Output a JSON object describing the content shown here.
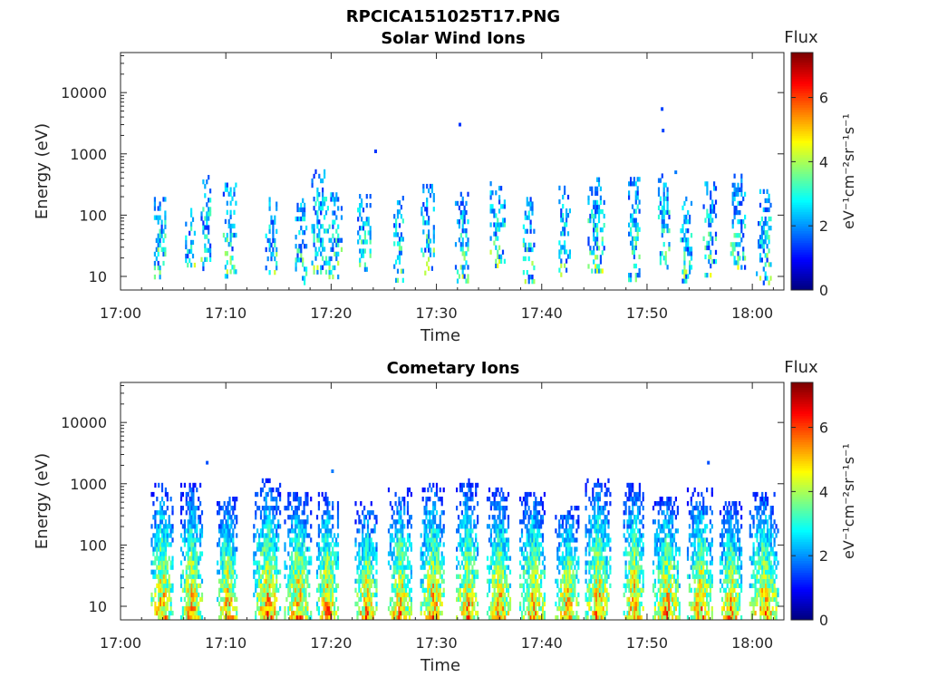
{
  "figure_title": "RPCICA151025T17.PNG",
  "chart_data": [
    {
      "type": "heatmap",
      "title": "Solar Wind Ions",
      "xlabel": "Time",
      "ylabel": "Energy (eV)",
      "x_ticks": [
        "17:00",
        "17:10",
        "17:20",
        "17:30",
        "17:40",
        "17:50",
        "18:00"
      ],
      "xlim_minutes": [
        0,
        63
      ],
      "y_ticks": [
        "10",
        "100",
        "1000",
        "10000"
      ],
      "ylim": [
        6,
        45000
      ],
      "yscale": "log",
      "colorbar": {
        "label": "Flux",
        "units": "eV⁻¹cm⁻²sr⁻¹s⁻¹",
        "ticks": [
          "0",
          "2",
          "4",
          "6"
        ],
        "range": [
          0,
          7.4
        ],
        "colormap": "jet"
      },
      "bursts_minutes_after_1700": [
        3.7,
        6.6,
        8.1,
        10.3,
        14.3,
        17.1,
        18.9,
        20.4,
        23.1,
        26.4,
        29.1,
        32.4,
        35.8,
        38.7,
        42.1,
        45.1,
        48.7,
        51.6,
        53.7,
        55.9,
        58.6,
        61.0
      ],
      "max_flux": 4.6,
      "isolated_points": [
        {
          "t": 24.1,
          "e": 1100,
          "v": 1.3
        },
        {
          "t": 32.1,
          "e": 3000,
          "v": 1.3
        },
        {
          "t": 51.3,
          "e": 5400,
          "v": 1.4
        },
        {
          "t": 51.4,
          "e": 2400,
          "v": 1.4
        },
        {
          "t": 52.6,
          "e": 500,
          "v": 1.8
        }
      ]
    },
    {
      "type": "heatmap",
      "title": "Cometary Ions",
      "xlabel": "Time",
      "ylabel": "Energy (eV)",
      "x_ticks": [
        "17:00",
        "17:10",
        "17:20",
        "17:30",
        "17:40",
        "17:50",
        "18:00"
      ],
      "xlim_minutes": [
        0,
        63
      ],
      "y_ticks": [
        "10",
        "100",
        "1000",
        "10000"
      ],
      "ylim": [
        6,
        45000
      ],
      "yscale": "log",
      "colorbar": {
        "label": "Flux",
        "units": "eV⁻¹cm⁻²sr⁻¹s⁻¹",
        "ticks": [
          "0",
          "2",
          "4",
          "6"
        ],
        "range": [
          0,
          7.4
        ],
        "colormap": "jet"
      },
      "bursts_minutes_after_1700": [
        3.9,
        6.7,
        10.1,
        13.9,
        16.8,
        19.6,
        23.3,
        26.5,
        29.6,
        32.9,
        35.9,
        39.1,
        42.4,
        45.3,
        48.7,
        51.8,
        55.0,
        57.9,
        61.1
      ],
      "max_flux": 7.0,
      "isolated_points": [
        {
          "t": 8.1,
          "e": 2200,
          "v": 1.5
        },
        {
          "t": 55.7,
          "e": 2200,
          "v": 1.5
        },
        {
          "t": 20.0,
          "e": 1600,
          "v": 1.8
        }
      ]
    }
  ]
}
